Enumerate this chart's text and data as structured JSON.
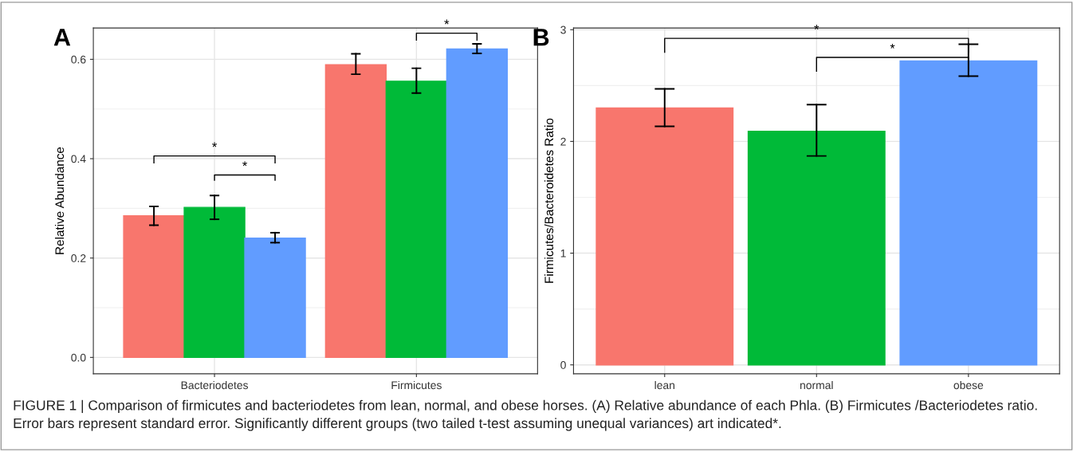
{
  "chart_data": [
    {
      "type": "bar",
      "ylabel": "Relative Abundance",
      "categories": [
        "Bacteriodetes",
        "Firmicutes"
      ],
      "series": [
        {
          "color": "#f8766d",
          "values": [
            0.285,
            0.589
          ],
          "errors": [
            [
              0.266,
              0.304
            ],
            [
              0.57,
              0.611
            ]
          ]
        },
        {
          "color": "#00ba38",
          "values": [
            0.302,
            0.556
          ],
          "errors": [
            [
              0.278,
              0.326
            ],
            [
              0.532,
              0.582
            ]
          ]
        },
        {
          "color": "#619cff",
          "values": [
            0.24,
            0.621
          ],
          "errors": [
            [
              0.231,
              0.251
            ],
            [
              0.612,
              0.631
            ]
          ]
        }
      ],
      "ylim": [
        -0.033,
        0.663
      ],
      "yticks": [
        {
          "value": 0,
          "label": "0.0"
        },
        0.2,
        0.4,
        0.6
      ],
      "grid": true,
      "annotations": [
        "A",
        "*",
        "*",
        "*",
        "FIGURE 1 | Comparison of firmicutes and bacteriodetes from lean, normal, and obese horses. (A) Relative abundance of each Phla. (B) Firmicutes /Bacteriodetes ratio. Error bars represent standard error. Significantly different groups (two tailed t-test assuming unequal variances) art indicated*."
      ]
    },
    {
      "type": "bar",
      "ylabel": "Firmicutes/Bacteroidetes Ratio",
      "categories": [
        "lean",
        "normal",
        "obese"
      ],
      "values": [
        2.3,
        2.09,
        2.72
      ],
      "colors": [
        "#f8766d",
        "#00ba38",
        "#619cff"
      ],
      "errors": [
        [
          2.135,
          2.47
        ],
        [
          1.87,
          2.33
        ],
        [
          2.585,
          2.87
        ]
      ],
      "ylim": [
        -0.08,
        3.015
      ],
      "yticks": [
        0,
        1,
        2,
        3
      ],
      "grid": true,
      "annotations": [
        "B",
        "*",
        "*"
      ]
    }
  ]
}
